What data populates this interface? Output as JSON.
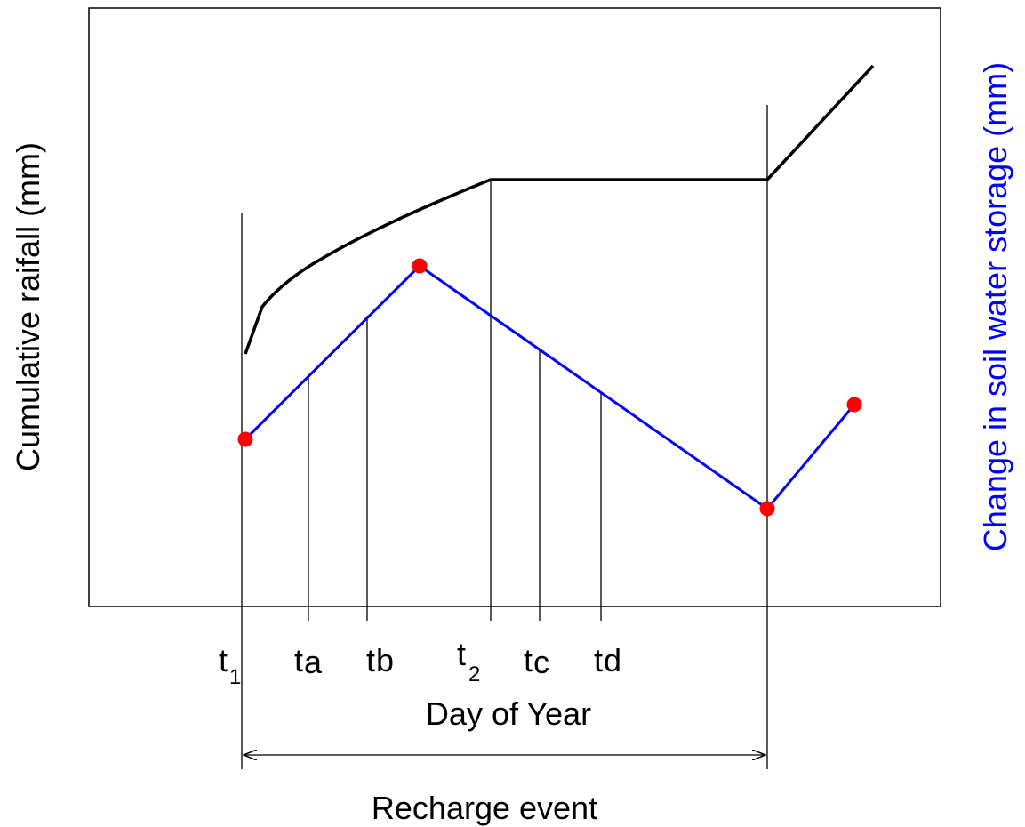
{
  "labels": {
    "x_axis_title": "Day of Year",
    "y_left_title": "Cumulative raifall (mm)",
    "y_right_title": "Change in soil water storage (mm)",
    "recharge_event": "Recharge event"
  },
  "time_markers": [
    {
      "main": "t",
      "sub": "1"
    },
    {
      "main": "t",
      "sub": "a"
    },
    {
      "main": "t",
      "sub": "b"
    },
    {
      "main": "t",
      "sub": "2"
    },
    {
      "main": "t",
      "sub": "c"
    },
    {
      "main": "t",
      "sub": "d"
    }
  ],
  "colors": {
    "rainfall_line": "#000000",
    "storage_line": "#0000ff",
    "storage_points": "#ff0000",
    "right_axis_title": "#0000ff"
  }
}
